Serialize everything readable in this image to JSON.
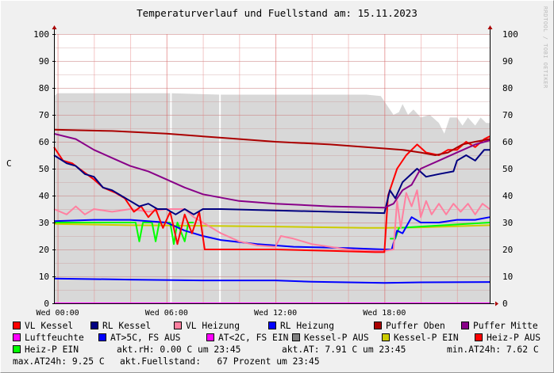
{
  "chart_data": {
    "type": "line",
    "title": "Temperaturverlauf und Fuellstand am: 15.11.2023",
    "ylabel": "C",
    "watermark": "RRDTOOL / TOBI OETIKER",
    "ylim": [
      0,
      100
    ],
    "xlim_hours": [
      -0.2,
      23.8
    ],
    "yticks": [
      0,
      10,
      20,
      30,
      40,
      50,
      60,
      70,
      80,
      90,
      100
    ],
    "xticks": [
      {
        "h": 0,
        "label": "Wed 00:00"
      },
      {
        "h": 6,
        "label": "Wed 06:00"
      },
      {
        "h": 12,
        "label": "Wed 12:00"
      },
      {
        "h": 18,
        "label": "Wed 18:00"
      }
    ],
    "area": {
      "name": "Fuellstand",
      "color": "#d8d8d8",
      "points": [
        [
          -0.2,
          77
        ],
        [
          0,
          78
        ],
        [
          2,
          78
        ],
        [
          4,
          78
        ],
        [
          6,
          78
        ],
        [
          6.3,
          78
        ],
        [
          9,
          77.5
        ],
        [
          12,
          77.5
        ],
        [
          15,
          77.5
        ],
        [
          17,
          77.5
        ],
        [
          17.8,
          77
        ],
        [
          18,
          75
        ],
        [
          18.3,
          72
        ],
        [
          18.5,
          70
        ],
        [
          18.8,
          71
        ],
        [
          19,
          74
        ],
        [
          19.3,
          70
        ],
        [
          19.6,
          72
        ],
        [
          20,
          69
        ],
        [
          20.5,
          70
        ],
        [
          21,
          67
        ],
        [
          21.3,
          63
        ],
        [
          21.6,
          69
        ],
        [
          22,
          69
        ],
        [
          22.3,
          66
        ],
        [
          22.6,
          69
        ],
        [
          23,
          66
        ],
        [
          23.3,
          69
        ],
        [
          23.6,
          67
        ],
        [
          23.8,
          67
        ]
      ]
    },
    "series": [
      {
        "name": "Kessel-P EIN",
        "color": "#cccc00",
        "points": [
          [
            -0.2,
            29.5
          ],
          [
            4,
            29
          ],
          [
            8,
            28.8
          ],
          [
            12,
            28.5
          ],
          [
            17,
            28
          ],
          [
            18,
            28
          ],
          [
            20,
            28.2
          ],
          [
            23.8,
            29
          ]
        ]
      },
      {
        "name": "Heiz-P EIN",
        "color": "#00ff00",
        "points": [
          [
            -0.2,
            30
          ],
          [
            4.3,
            30
          ],
          [
            4.5,
            23
          ],
          [
            4.7,
            30
          ],
          [
            5.2,
            30
          ],
          [
            5.4,
            23
          ],
          [
            5.6,
            30
          ],
          [
            6.2,
            30
          ],
          [
            6.4,
            22
          ],
          [
            6.6,
            30
          ],
          [
            7,
            23
          ],
          [
            7.2,
            30
          ],
          [
            7.5,
            30
          ],
          [
            7.6,
            null
          ],
          [
            18.2,
            null
          ],
          [
            18.3,
            24
          ],
          [
            18.6,
            24
          ],
          [
            18.8,
            28
          ],
          [
            20,
            28.5
          ],
          [
            23.8,
            30
          ]
        ]
      },
      {
        "name": "AT>5C, FS AUS",
        "color": "#0000ff",
        "points": [
          [
            -0.2,
            9.2
          ],
          [
            4,
            8.8
          ],
          [
            8,
            8.5
          ],
          [
            12,
            8.5
          ],
          [
            14,
            8
          ],
          [
            16,
            7.8
          ],
          [
            18,
            7.6
          ],
          [
            20,
            7.8
          ],
          [
            23.8,
            7.9
          ]
        ]
      },
      {
        "name": "RL Heizung",
        "color": "#0000ff",
        "points": [
          [
            -0.2,
            30.5
          ],
          [
            2,
            31
          ],
          [
            4,
            31
          ],
          [
            6,
            30
          ],
          [
            7,
            27
          ],
          [
            8,
            25
          ],
          [
            9,
            23.5
          ],
          [
            11,
            22
          ],
          [
            13,
            21
          ],
          [
            16,
            20.5
          ],
          [
            18,
            20
          ],
          [
            18.4,
            20
          ],
          [
            18.7,
            27
          ],
          [
            19,
            26
          ],
          [
            19.5,
            32
          ],
          [
            20,
            30
          ],
          [
            21,
            30
          ],
          [
            22,
            31
          ],
          [
            23,
            31
          ],
          [
            23.8,
            32
          ]
        ]
      },
      {
        "name": "VL Heizung",
        "color": "#ff80a0",
        "points": [
          [
            -0.2,
            35
          ],
          [
            0.5,
            33
          ],
          [
            1,
            36
          ],
          [
            1.5,
            33
          ],
          [
            2,
            35
          ],
          [
            3,
            34
          ],
          [
            4,
            35
          ],
          [
            5,
            34
          ],
          [
            6,
            35
          ],
          [
            7,
            35
          ],
          [
            7.5,
            32
          ],
          [
            8,
            30
          ],
          [
            9,
            26
          ],
          [
            10,
            23
          ],
          [
            11,
            21.5
          ],
          [
            12,
            21
          ],
          [
            12.3,
            25
          ],
          [
            13,
            24
          ],
          [
            14,
            22
          ],
          [
            15,
            21
          ],
          [
            16,
            20
          ],
          [
            17,
            19.5
          ],
          [
            18,
            19.5
          ],
          [
            18.5,
            20
          ],
          [
            18.7,
            38
          ],
          [
            18.9,
            28
          ],
          [
            19.2,
            41
          ],
          [
            19.5,
            36
          ],
          [
            19.8,
            42
          ],
          [
            20,
            32
          ],
          [
            20.3,
            38
          ],
          [
            20.6,
            33
          ],
          [
            21,
            37
          ],
          [
            21.4,
            33
          ],
          [
            21.8,
            37
          ],
          [
            22.2,
            34
          ],
          [
            22.6,
            37
          ],
          [
            23,
            33
          ],
          [
            23.4,
            37
          ],
          [
            23.8,
            35
          ]
        ]
      },
      {
        "name": "VL Kessel",
        "color": "#ff0000",
        "points": [
          [
            -0.2,
            58
          ],
          [
            0.3,
            53
          ],
          [
            0.8,
            52
          ],
          [
            1.2,
            50
          ],
          [
            1.6,
            48
          ],
          [
            2,
            46
          ],
          [
            2.5,
            43
          ],
          [
            3.2,
            41
          ],
          [
            3.7,
            39
          ],
          [
            4.2,
            34
          ],
          [
            4.6,
            36
          ],
          [
            5,
            32
          ],
          [
            5.4,
            35
          ],
          [
            5.8,
            28
          ],
          [
            6.2,
            34
          ],
          [
            6.6,
            22
          ],
          [
            7,
            33
          ],
          [
            7.4,
            26
          ],
          [
            7.8,
            34
          ],
          [
            8.1,
            20
          ],
          [
            12,
            20
          ],
          [
            15,
            19.5
          ],
          [
            17.5,
            19
          ],
          [
            18,
            19
          ],
          [
            18.2,
            40
          ],
          [
            18.7,
            50
          ],
          [
            19.2,
            55
          ],
          [
            19.8,
            59
          ],
          [
            20.3,
            56
          ],
          [
            21,
            55
          ],
          [
            21.5,
            57
          ],
          [
            22,
            57
          ],
          [
            22.5,
            60
          ],
          [
            23,
            58
          ],
          [
            23.5,
            61
          ],
          [
            23.8,
            62
          ]
        ]
      },
      {
        "name": "RL Kessel",
        "color": "#000080",
        "points": [
          [
            -0.2,
            55
          ],
          [
            0.5,
            52
          ],
          [
            1,
            51
          ],
          [
            1.5,
            48
          ],
          [
            2,
            47
          ],
          [
            2.5,
            43
          ],
          [
            3,
            42
          ],
          [
            3.5,
            40
          ],
          [
            4,
            38
          ],
          [
            4.5,
            36
          ],
          [
            5,
            37
          ],
          [
            5.5,
            35
          ],
          [
            6,
            35
          ],
          [
            6.5,
            33
          ],
          [
            7,
            35
          ],
          [
            7.5,
            33
          ],
          [
            8,
            35
          ],
          [
            9,
            35
          ],
          [
            12,
            34.5
          ],
          [
            15,
            34
          ],
          [
            18,
            33.5
          ],
          [
            18.3,
            42
          ],
          [
            18.6,
            39
          ],
          [
            19,
            45
          ],
          [
            19.8,
            50
          ],
          [
            20.3,
            47
          ],
          [
            21,
            48
          ],
          [
            21.8,
            49
          ],
          [
            22,
            53
          ],
          [
            22.5,
            55
          ],
          [
            23,
            53
          ],
          [
            23.5,
            57
          ],
          [
            23.8,
            57
          ]
        ]
      },
      {
        "name": "Puffer Oben",
        "color": "#aa0000",
        "points": [
          [
            -0.2,
            64.5
          ],
          [
            3,
            64
          ],
          [
            6,
            63
          ],
          [
            9,
            61.5
          ],
          [
            12,
            60
          ],
          [
            15,
            59
          ],
          [
            18,
            57.5
          ],
          [
            19,
            57
          ],
          [
            20,
            56
          ],
          [
            20.8,
            55
          ],
          [
            21.5,
            56
          ],
          [
            22.3,
            59
          ],
          [
            23,
            60
          ],
          [
            23.8,
            61
          ]
        ]
      },
      {
        "name": "Puffer Mitte",
        "color": "#880088",
        "points": [
          [
            -0.2,
            63
          ],
          [
            1,
            61
          ],
          [
            2,
            57
          ],
          [
            3,
            54
          ],
          [
            4,
            51
          ],
          [
            5,
            49
          ],
          [
            6,
            46
          ],
          [
            7,
            43
          ],
          [
            8,
            40.5
          ],
          [
            10,
            38
          ],
          [
            12,
            37
          ],
          [
            15,
            36
          ],
          [
            18,
            35.5
          ],
          [
            18.5,
            37
          ],
          [
            19,
            42
          ],
          [
            19.5,
            44
          ],
          [
            20,
            50
          ],
          [
            21,
            53
          ],
          [
            22,
            56
          ],
          [
            23,
            59
          ],
          [
            23.8,
            60.5
          ]
        ]
      },
      {
        "name": "Luftfeuchte",
        "color": "#ff00ff",
        "points": [
          [
            -0.2,
            0
          ],
          [
            23.8,
            0
          ]
        ]
      }
    ]
  },
  "legend": [
    [
      {
        "color": "#ff0000",
        "label": "VL Kessel"
      },
      {
        "color": "#000080",
        "label": "RL Kessel"
      },
      {
        "color": "#ff80a0",
        "label": "VL Heizung"
      },
      {
        "color": "#0000ff",
        "label": "RL Heizung"
      },
      {
        "color": "#aa0000",
        "label": "Puffer Oben"
      },
      {
        "color": "#880088",
        "label": "Puffer Mitte"
      }
    ],
    [
      {
        "color": "#ff00ff",
        "label": "Luftfeuchte"
      },
      {
        "color": "#0000ff",
        "label": "AT>5C, FS AUS"
      },
      {
        "color": "#ff00ff",
        "label": "AT<2C, FS EIN"
      },
      {
        "color": "#808080",
        "label": "Kessel-P AUS"
      },
      {
        "color": "#cccc00",
        "label": "Kessel-P EIN"
      },
      {
        "color": "#ff0000",
        "label": "Heiz-P AUS"
      }
    ]
  ],
  "stats": {
    "heizp_ein": "Heiz-P EIN",
    "heizp_ein_color": "#00ff00",
    "akt_rh": "akt.rH: 0.00 C um 23:45",
    "akt_at": "akt.AT: 7.91 C um 23:45",
    "min_at": "min.AT24h: 7.62 C",
    "max_at": "max.AT24h: 9.25 C",
    "fuellstand": "akt.Fuellstand:   67 Prozent um 23:45"
  }
}
